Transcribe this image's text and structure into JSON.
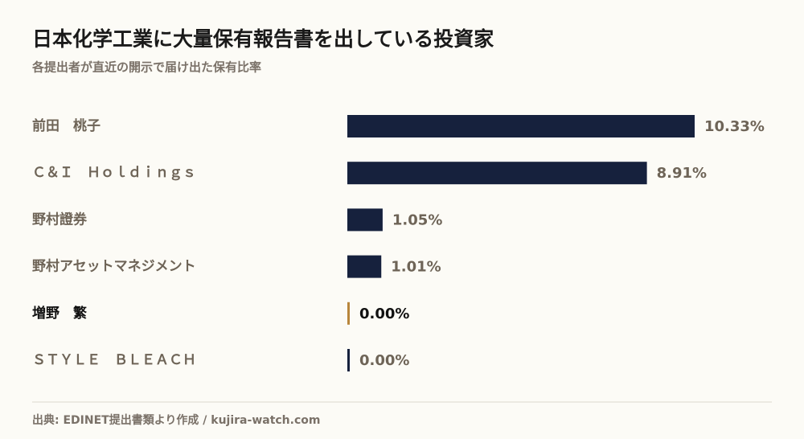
{
  "chart_data": {
    "type": "bar",
    "orientation": "horizontal",
    "title": "日本化学工業に大量保有報告書を出している投資家",
    "subtitle": "各提出者が直近の開示で届け出た保有比率",
    "categories": [
      "前田　桃子",
      "Ｃ＆Ｉ　Ｈｏｌｄｉｎｇｓ",
      "野村證券",
      "野村アセットマネジメント",
      "増野　繁",
      "ＳＴＹＬＥ　ＢＬＥＡＣＨ"
    ],
    "values": [
      10.33,
      8.91,
      1.05,
      1.01,
      0.0,
      0.0
    ],
    "value_labels": [
      "10.33%",
      "8.91%",
      "1.05%",
      "1.01%",
      "0.00%",
      "0.00%"
    ],
    "color": "#16213d",
    "colors": [
      "#16213d",
      "#16213d",
      "#16213d",
      "#16213d",
      "#b8863b",
      "#16213d"
    ],
    "source": "出典: EDINET提出書類より作成 / kujira-watch.com"
  }
}
